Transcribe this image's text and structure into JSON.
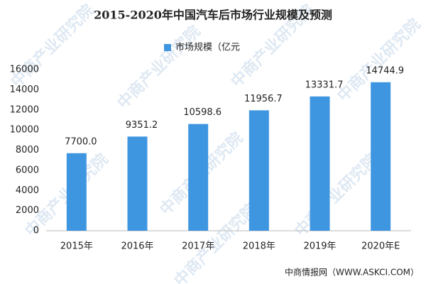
{
  "chart_data": {
    "type": "bar",
    "title": "2015-2020年中国汽车后市场行业规模及预测",
    "categories": [
      "2015年",
      "2016年",
      "2017年",
      "2018年",
      "2019年",
      "2020年E"
    ],
    "series": [
      {
        "name": "市场规模（亿元",
        "color": "#3f96e0",
        "values": [
          7700.0,
          9351.2,
          10598.6,
          11956.7,
          13331.7,
          14744.9
        ],
        "value_labels": [
          "7700.0",
          "9351.2",
          "10598.6",
          "11956.7",
          "13331.7",
          "14744.9"
        ]
      }
    ],
    "ylim": [
      0,
      16000
    ],
    "yticks": [
      0,
      2000,
      4000,
      6000,
      8000,
      10000,
      12000,
      14000,
      16000
    ],
    "grid": false,
    "legend": "top",
    "watermark": "中商产业研究院",
    "source": "中商情报网（WWW.ASKCI.COM）"
  }
}
